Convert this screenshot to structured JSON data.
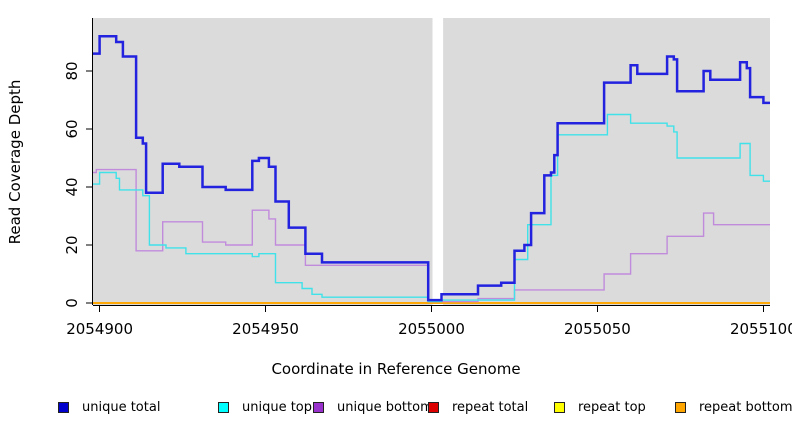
{
  "chart_data": {
    "type": "line",
    "subtype": "step",
    "title": "",
    "xlabel": "Coordinate in Reference Genome",
    "ylabel": "Read Coverage Depth",
    "xlim": [
      2054898,
      2055102
    ],
    "ylim": [
      0,
      98
    ],
    "x_ticks": [
      "2054900",
      "2054950",
      "2055000",
      "2055050",
      "2055100"
    ],
    "y_ticks": [
      "0",
      "20",
      "40",
      "60",
      "80"
    ],
    "plot_bg": "#DBDBDB",
    "grid": false,
    "gap_region": {
      "from": 2055000.3,
      "to": 2055003.5,
      "color": "#FFFFFF"
    },
    "series": [
      {
        "name": "repeat total",
        "color": "#DE1F10",
        "width": 1.4,
        "points": [
          [
            2054898,
            0
          ]
        ]
      },
      {
        "name": "repeat top",
        "color": "#FFFF00",
        "width": 1.4,
        "points": [
          [
            2054898,
            0
          ]
        ]
      },
      {
        "name": "repeat bottom",
        "color": "#FFA500",
        "width": 1.7,
        "points": [
          [
            2054898,
            0
          ]
        ]
      },
      {
        "name": "unique bottom",
        "color": "#C18BDC",
        "width": 1.4,
        "points": [
          [
            2054898,
            45
          ],
          [
            2054899,
            46
          ],
          [
            2054911,
            18
          ],
          [
            2054919,
            28
          ],
          [
            2054931,
            21
          ],
          [
            2054938,
            20
          ],
          [
            2054946,
            32
          ],
          [
            2054951,
            29
          ],
          [
            2054953,
            20
          ],
          [
            2054962,
            13
          ],
          [
            2054999,
            0.5
          ],
          [
            2055014,
            1.5
          ],
          [
            2055025,
            4.5
          ],
          [
            2055052,
            10
          ],
          [
            2055060,
            17
          ],
          [
            2055071,
            23
          ],
          [
            2055082,
            31
          ],
          [
            2055085,
            27
          ]
        ]
      },
      {
        "name": "unique top",
        "color": "#3FE2E9",
        "width": 1.4,
        "points": [
          [
            2054898,
            41
          ],
          [
            2054900,
            45
          ],
          [
            2054905,
            43
          ],
          [
            2054906,
            39
          ],
          [
            2054913,
            37
          ],
          [
            2054915,
            20
          ],
          [
            2054920,
            19
          ],
          [
            2054926,
            17
          ],
          [
            2054946,
            16
          ],
          [
            2054948,
            17
          ],
          [
            2054953,
            7
          ],
          [
            2054961,
            5
          ],
          [
            2054964,
            3
          ],
          [
            2054967,
            2
          ],
          [
            2054999,
            0.5
          ],
          [
            2055003,
            1
          ],
          [
            2055025,
            15
          ],
          [
            2055029,
            27
          ],
          [
            2055036,
            44
          ],
          [
            2055038,
            58
          ],
          [
            2055053,
            65
          ],
          [
            2055060,
            62
          ],
          [
            2055071,
            61
          ],
          [
            2055073,
            59
          ],
          [
            2055074,
            50
          ],
          [
            2055093,
            55
          ],
          [
            2055096,
            44
          ],
          [
            2055100,
            42
          ]
        ]
      },
      {
        "name": "unique total",
        "color": "#2222DF",
        "width": 2.5,
        "points": [
          [
            2054898,
            86
          ],
          [
            2054900,
            92
          ],
          [
            2054905,
            90
          ],
          [
            2054907,
            85
          ],
          [
            2054911,
            57
          ],
          [
            2054913,
            55
          ],
          [
            2054914,
            38
          ],
          [
            2054919,
            48
          ],
          [
            2054924,
            47
          ],
          [
            2054931,
            40
          ],
          [
            2054938,
            39
          ],
          [
            2054946,
            49
          ],
          [
            2054948,
            50
          ],
          [
            2054951,
            47
          ],
          [
            2054953,
            35
          ],
          [
            2054957,
            26
          ],
          [
            2054962,
            17
          ],
          [
            2054967,
            14
          ],
          [
            2054999,
            1
          ],
          [
            2055003,
            3
          ],
          [
            2055014,
            6
          ],
          [
            2055021,
            7
          ],
          [
            2055025,
            18
          ],
          [
            2055028,
            20
          ],
          [
            2055030,
            31
          ],
          [
            2055034,
            44
          ],
          [
            2055036,
            45
          ],
          [
            2055037,
            51
          ],
          [
            2055038,
            62
          ],
          [
            2055052,
            76
          ],
          [
            2055060,
            82
          ],
          [
            2055062,
            79
          ],
          [
            2055071,
            85
          ],
          [
            2055073,
            84
          ],
          [
            2055074,
            73
          ],
          [
            2055082,
            80
          ],
          [
            2055084,
            77
          ],
          [
            2055093,
            83
          ],
          [
            2055095,
            81
          ],
          [
            2055096,
            71
          ],
          [
            2055100,
            69
          ]
        ]
      }
    ],
    "legend": [
      {
        "label": "unique total",
        "color": "#0000CC"
      },
      {
        "label": "unique top",
        "color": "#00FFFF"
      },
      {
        "label": "unique bottom",
        "color": "#9932CC"
      },
      {
        "label": "repeat total",
        "color": "#DD0000"
      },
      {
        "label": "repeat top",
        "color": "#FFFF00"
      },
      {
        "label": "repeat bottom",
        "color": "#FFA500"
      }
    ]
  }
}
